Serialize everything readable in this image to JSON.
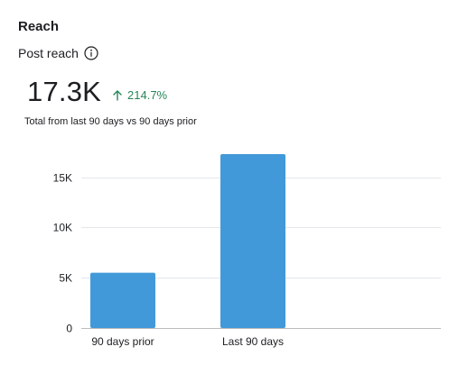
{
  "section_title": "Reach",
  "metric": {
    "label": "Post reach",
    "info_icon": "info-circle-icon",
    "value": "17.3K",
    "delta": "214.7%",
    "delta_icon": "arrow-up-icon",
    "delta_color": "#27855a",
    "caption": "Total from last 90 days vs 90 days prior"
  },
  "chart_data": {
    "type": "bar",
    "categories": [
      "90 days prior",
      "Last 90 days"
    ],
    "values": [
      5500,
      17300
    ],
    "ylim": [
      0,
      17300
    ],
    "yticks": [
      0,
      5000,
      10000,
      15000
    ],
    "ytick_labels": [
      "0",
      "5K",
      "10K",
      "15K"
    ],
    "grid": true,
    "bar_color": "#4299d9"
  }
}
